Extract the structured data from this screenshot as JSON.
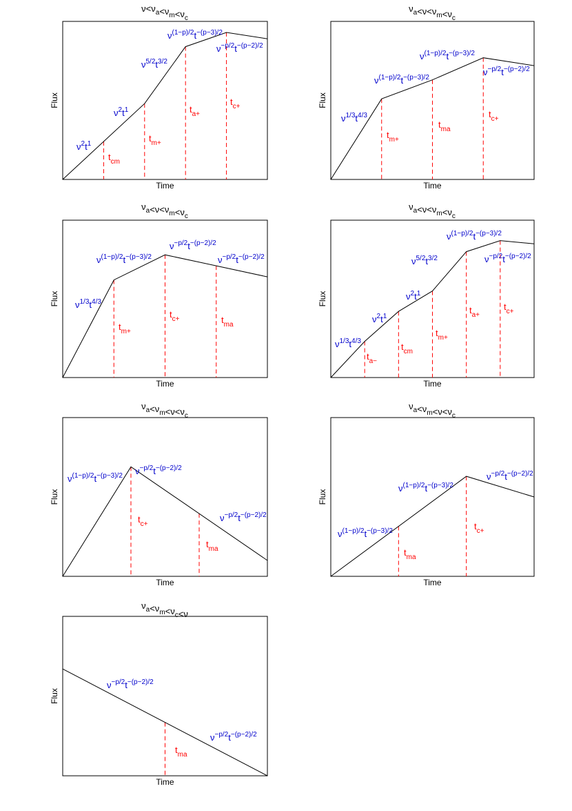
{
  "chart_data": [
    {
      "type": "line",
      "title": "ν<ν_a<ν_m<ν_c",
      "xlabel": "Time",
      "ylabel": "Flux",
      "xlim": [
        0,
        1
      ],
      "ylim": [
        0,
        1
      ],
      "x": [
        0,
        0.4,
        0.6,
        0.8,
        1.0
      ],
      "y": [
        0,
        0.48,
        0.84,
        0.93,
        0.89
      ],
      "breaks": [
        {
          "label": "t",
          "sub": "cm",
          "x": 0.2
        },
        {
          "label": "t",
          "sub": "m+",
          "x": 0.4
        },
        {
          "label": "t",
          "sub": "a+",
          "x": 0.6
        },
        {
          "label": "t",
          "sub": "c+",
          "x": 0.8
        }
      ],
      "segment_labels": [
        {
          "text": "ν²t¹",
          "base": "ν",
          "e1": "2",
          "mid": "t",
          "e2": "1"
        },
        {
          "text": "ν²t¹",
          "base": "ν",
          "e1": "2",
          "mid": "t",
          "e2": "1"
        },
        {
          "text": "ν^{5/2}t^{3/2}",
          "base": "ν",
          "e1": "5/2",
          "mid": "t",
          "e2": "3/2"
        },
        {
          "text": "ν^{(1−p)/2}t^{−(p−3)/2}",
          "base": "ν",
          "e1": "(1−p)/2",
          "mid": "t",
          "e2": "−(p−3)/2"
        },
        {
          "text": "ν^{−p/2}t^{−(p−2)/2}",
          "base": "ν",
          "e1": "−p/2",
          "mid": "t",
          "e2": "−(p−2)/2"
        }
      ]
    },
    {
      "type": "line",
      "title": "ν_a<ν<ν_m<ν_c",
      "xlabel": "Time",
      "ylabel": "Flux",
      "xlim": [
        0,
        1
      ],
      "ylim": [
        0,
        1
      ],
      "x": [
        0,
        0.25,
        0.5,
        0.75,
        1.0
      ],
      "y": [
        0,
        0.51,
        0.63,
        0.77,
        0.72
      ],
      "breaks": [
        {
          "label": "t",
          "sub": "m+",
          "x": 0.25
        },
        {
          "label": "t",
          "sub": "ma",
          "x": 0.5
        },
        {
          "label": "t",
          "sub": "c+",
          "x": 0.75
        }
      ],
      "segment_labels": [
        {
          "text": "ν^{1/3}t^{4/3}",
          "base": "ν",
          "e1": "1/3",
          "mid": "t",
          "e2": "4/3"
        },
        {
          "text": "ν^{(1−p)/2}t^{−(p−3)/2}",
          "base": "ν",
          "e1": "(1−p)/2",
          "mid": "t",
          "e2": "−(p−3)/2"
        },
        {
          "text": "ν^{(1−p)/2}t^{−(p−3)/2}",
          "base": "ν",
          "e1": "(1−p)/2",
          "mid": "t",
          "e2": "−(p−3)/2"
        },
        {
          "text": "ν^{−p/2}t^{−(p−2)/2}",
          "base": "ν",
          "e1": "−p/2",
          "mid": "t",
          "e2": "−(p−2)/2"
        }
      ]
    },
    {
      "type": "line",
      "title": "ν_a<ν<ν_m<ν_c",
      "xlabel": "Time",
      "ylabel": "Flux",
      "xlim": [
        0,
        1
      ],
      "ylim": [
        0,
        1
      ],
      "x": [
        0,
        0.25,
        0.5,
        0.75,
        1.0
      ],
      "y": [
        0,
        0.62,
        0.78,
        0.71,
        0.64
      ],
      "breaks": [
        {
          "label": "t",
          "sub": "m+",
          "x": 0.25
        },
        {
          "label": "t",
          "sub": "c+",
          "x": 0.5
        },
        {
          "label": "t",
          "sub": "ma",
          "x": 0.75
        }
      ],
      "segment_labels": [
        {
          "text": "ν^{1/3}t^{4/3}",
          "base": "ν",
          "e1": "1/3",
          "mid": "t",
          "e2": "4/3"
        },
        {
          "text": "ν^{(1−p)/2}t^{−(p−3)/2}",
          "base": "ν",
          "e1": "(1−p)/2",
          "mid": "t",
          "e2": "−(p−3)/2"
        },
        {
          "text": "ν^{−p/2}t^{−(p−2)/2}",
          "base": "ν",
          "e1": "−p/2",
          "mid": "t",
          "e2": "−(p−2)/2"
        },
        {
          "text": "ν^{−p/2}t^{−(p−2)/2}",
          "base": "ν",
          "e1": "−p/2",
          "mid": "t",
          "e2": "−(p−2)/2"
        }
      ]
    },
    {
      "type": "line",
      "title": "ν_a<ν<ν_m<ν_c",
      "xlabel": "Time",
      "ylabel": "Flux",
      "xlim": [
        0,
        1
      ],
      "ylim": [
        0,
        1
      ],
      "x": [
        0,
        0.1667,
        0.3333,
        0.5,
        0.6667,
        0.8333,
        1.0
      ],
      "y": [
        0,
        0.23,
        0.42,
        0.55,
        0.8,
        0.87,
        0.85
      ],
      "breaks": [
        {
          "label": "t",
          "sub": "a−",
          "x": 0.1667
        },
        {
          "label": "t",
          "sub": "cm",
          "x": 0.3333
        },
        {
          "label": "t",
          "sub": "m+",
          "x": 0.5
        },
        {
          "label": "t",
          "sub": "a+",
          "x": 0.6667
        },
        {
          "label": "t",
          "sub": "c+",
          "x": 0.8333
        }
      ],
      "segment_labels": [
        {
          "text": "ν^{1/3}t^{4/3}",
          "base": "ν",
          "e1": "1/3",
          "mid": "t",
          "e2": "4/3"
        },
        {
          "text": "ν²t¹",
          "base": "ν",
          "e1": "2",
          "mid": "t",
          "e2": "1"
        },
        {
          "text": "ν²t¹",
          "base": "ν",
          "e1": "2",
          "mid": "t",
          "e2": "1"
        },
        {
          "text": "ν^{5/2}t^{3/2}",
          "base": "ν",
          "e1": "5/2",
          "mid": "t",
          "e2": "3/2"
        },
        {
          "text": "ν^{(1−p)/2}t^{−(p−3)/2}",
          "base": "ν",
          "e1": "(1−p)/2",
          "mid": "t",
          "e2": "−(p−3)/2"
        },
        {
          "text": "ν^{−p/2}t^{−(p−2)/2}",
          "base": "ν",
          "e1": "−p/2",
          "mid": "t",
          "e2": "−(p−2)/2"
        }
      ]
    },
    {
      "type": "line",
      "title": "ν_a<ν_m<ν<ν_c",
      "xlabel": "Time",
      "ylabel": "Flux",
      "xlim": [
        0,
        1
      ],
      "ylim": [
        0,
        1
      ],
      "x": [
        0,
        0.3333,
        1.0
      ],
      "y": [
        0,
        0.69,
        0.1
      ],
      "breaks": [
        {
          "label": "t",
          "sub": "c+",
          "x": 0.3333
        },
        {
          "label": "t",
          "sub": "ma",
          "x": 0.6667
        }
      ],
      "segment_labels": [
        {
          "text": "ν^{(1−p)/2}t^{−(p−3)/2}",
          "base": "ν",
          "e1": "(1−p)/2",
          "mid": "t",
          "e2": "−(p−3)/2"
        },
        {
          "text": "ν^{−p/2}t^{−(p−2)/2}",
          "base": "ν",
          "e1": "−p/2",
          "mid": "t",
          "e2": "−(p−2)/2"
        },
        {
          "text": "ν^{−p/2}t^{−(p−2)/2}",
          "base": "ν",
          "e1": "−p/2",
          "mid": "t",
          "e2": "−(p−2)/2"
        }
      ]
    },
    {
      "type": "line",
      "title": "ν_a<ν_m<ν<ν_c",
      "xlabel": "Time",
      "ylabel": "Flux",
      "xlim": [
        0,
        1
      ],
      "ylim": [
        0,
        1
      ],
      "x": [
        0,
        0.6667,
        1.0
      ],
      "y": [
        0,
        0.63,
        0.5
      ],
      "breaks": [
        {
          "label": "t",
          "sub": "ma",
          "x": 0.3333
        },
        {
          "label": "t",
          "sub": "c+",
          "x": 0.6667
        }
      ],
      "segment_labels": [
        {
          "text": "ν^{(1−p)/2}t^{−(p−3)/2}",
          "base": "ν",
          "e1": "(1−p)/2",
          "mid": "t",
          "e2": "−(p−3)/2"
        },
        {
          "text": "ν^{(1−p)/2}t^{−(p−3)/2}",
          "base": "ν",
          "e1": "(1−p)/2",
          "mid": "t",
          "e2": "−(p−3)/2"
        },
        {
          "text": "ν^{−p/2}t^{−(p−2)/2}",
          "base": "ν",
          "e1": "−p/2",
          "mid": "t",
          "e2": "−(p−2)/2"
        }
      ]
    },
    {
      "type": "line",
      "title": "ν_a<ν_m<ν_c<ν",
      "xlabel": "Time",
      "ylabel": "Flux",
      "xlim": [
        0,
        1
      ],
      "ylim": [
        0,
        1
      ],
      "x": [
        0,
        1.0
      ],
      "y": [
        0.67,
        0
      ],
      "breaks": [
        {
          "label": "t",
          "sub": "ma",
          "x": 0.5
        }
      ],
      "segment_labels": [
        {
          "text": "ν^{−p/2}t^{−(p−2)/2}",
          "base": "ν",
          "e1": "−p/2",
          "mid": "t",
          "e2": "−(p−2)/2"
        },
        {
          "text": "ν^{−p/2}t^{−(p−2)/2}",
          "base": "ν",
          "e1": "−p/2",
          "mid": "t",
          "e2": "−(p−2)/2"
        }
      ]
    }
  ]
}
